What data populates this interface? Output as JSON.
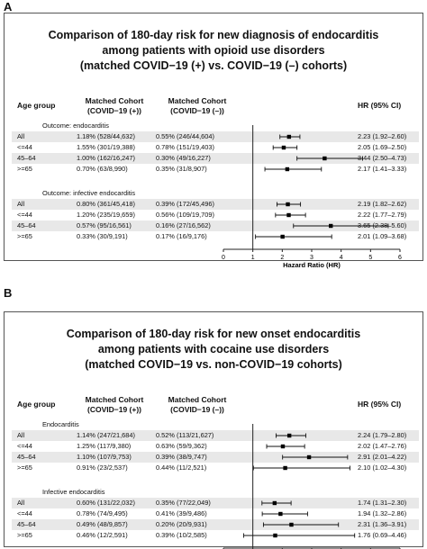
{
  "panels": [
    {
      "letter": "A",
      "title": [
        "Comparison of 180-day risk for new diagnosis of endocarditis",
        "among patients with opioid use disorders",
        "(matched COVID−19 (+) vs. COVID−19 (–) cohorts)"
      ],
      "headers": {
        "age_group": "Age group",
        "cohort1": [
          "Matched Cohort",
          "(COVID−19 (+))"
        ],
        "cohort2": [
          "Matched Cohort",
          "(COVID−19 (–))"
        ],
        "hr": "HR (95% CI)"
      },
      "sections": [
        {
          "label": "Outcome: endocarditis",
          "rows": [
            {
              "age": "All",
              "c1": "1.18% (528/44,632)",
              "c2": "0.55% (246/44,604)",
              "hr_text": "2.23 (1.92–2.60)"
            },
            {
              "age": "<=44",
              "c1": "1.55% (301/19,388)",
              "c2": "0.78% (151/19,403)",
              "hr_text": "2.05 (1.69–2.50)"
            },
            {
              "age": "45–64",
              "c1": "1.00% (162/16,247)",
              "c2": "0.30% (49/16,227)",
              "hr_text": "3.44 (2.50–4.73)"
            },
            {
              "age": ">=65",
              "c1": "0.70% (63/8,990)",
              "c2": "0.35% (31/8,907)",
              "hr_text": "2.17 (1.41–3.33)"
            }
          ]
        },
        {
          "label": "Outcome: infective endocarditis",
          "rows": [
            {
              "age": "All",
              "c1": "0.80% (361/45,418)",
              "c2": "0.39% (172/45,496)",
              "hr_text": "2.19 (1.82–2.62)"
            },
            {
              "age": "<=44",
              "c1": "1.20% (235/19,659)",
              "c2": "0.56% (109/19,709)",
              "hr_text": "2.22 (1.77–2.79)"
            },
            {
              "age": "45–64",
              "c1": "0.57% (95/16,561)",
              "c2": "0.16% (27/16,562)",
              "hr_text": "3.65 (2.38–5.60)"
            },
            {
              "age": ">=65",
              "c1": "0.33% (30/9,191)",
              "c2": "0.17% (16/9,176)",
              "hr_text": "2.01 (1.09–3.68)"
            }
          ]
        }
      ],
      "axis_label": "Hazard Ratio (HR)"
    },
    {
      "letter": "B",
      "title": [
        "Comparison of 180-day risk for new onset endocarditis",
        "among patients with cocaine use disorders",
        "(matched COVID−19 vs. non-COVID−19 cohorts)"
      ],
      "headers": {
        "age_group": "Age group",
        "cohort1": [
          "Matched Cohort",
          "(COVID−19 (+))"
        ],
        "cohort2": [
          "Matched Cohort",
          "(COVID−19 (–))"
        ],
        "hr": "HR (95% CI)"
      },
      "sections": [
        {
          "label": "Endocarditis",
          "rows": [
            {
              "age": "All",
              "c1": "1.14% (247/21,684)",
              "c2": "0.52% (113/21,627)",
              "hr_text": "2.24 (1.79–2.80)"
            },
            {
              "age": "<=44",
              "c1": "1.25% (117/9,380)",
              "c2": "0.63% (59/9,362)",
              "hr_text": "2.02 (1.47–2.76)"
            },
            {
              "age": "45–64",
              "c1": "1.10% (107/9,753)",
              "c2": "0.39% (38/9,747)",
              "hr_text": "2.91 (2.01–4.22)"
            },
            {
              "age": ">=65",
              "c1": "0.91% (23/2,537)",
              "c2": "0.44% (11/2,521)",
              "hr_text": "2.10 (1.02–4.30)"
            }
          ]
        },
        {
          "label": "Infective endocarditis",
          "rows": [
            {
              "age": "All",
              "c1": "0.60% (131/22,032)",
              "c2": "0.35% (77/22,049)",
              "hr_text": "1.74 (1.31–2.30)"
            },
            {
              "age": "<=44",
              "c1": "0.78% (74/9,495)",
              "c2": "0.41% (39/9,486)",
              "hr_text": "1.94 (1.32–2.86)"
            },
            {
              "age": "45–64",
              "c1": "0.49% (48/9,857)",
              "c2": "0.20% (20/9,931)",
              "hr_text": "2.31 (1.36–3.91)"
            },
            {
              "age": ">=65",
              "c1": "0.46% (12/2,591)",
              "c2": "0.39% (10/2,585)",
              "hr_text": "1.76 (0.69–4.46)"
            }
          ]
        }
      ],
      "axis_label": "Hazard Ratio (HR)"
    }
  ],
  "chart_data": [
    {
      "type": "forest",
      "xlabel": "Hazard Ratio (HR)",
      "xlim": [
        0,
        6
      ],
      "xticks": [
        0,
        1,
        2,
        3,
        4,
        5,
        6
      ],
      "reference_line": 1,
      "series": [
        {
          "name": "Outcome: endocarditis",
          "categories": [
            "All",
            "<=44",
            "45–64",
            ">=65"
          ],
          "hr": [
            2.23,
            2.05,
            3.44,
            2.17
          ],
          "lower": [
            1.92,
            1.69,
            2.5,
            1.41
          ],
          "upper": [
            2.6,
            2.5,
            4.73,
            3.33
          ]
        },
        {
          "name": "Outcome: infective endocarditis",
          "categories": [
            "All",
            "<=44",
            "45–64",
            ">=65"
          ],
          "hr": [
            2.19,
            2.22,
            3.65,
            2.01
          ],
          "lower": [
            1.82,
            1.77,
            2.38,
            1.09
          ],
          "upper": [
            2.62,
            2.79,
            5.6,
            3.68
          ]
        }
      ]
    },
    {
      "type": "forest",
      "xlabel": "Hazard Ratio (HR)",
      "xlim": [
        0,
        6
      ],
      "xticks": [
        0,
        1,
        2,
        3,
        4,
        5,
        6
      ],
      "reference_line": 1,
      "series": [
        {
          "name": "Endocarditis",
          "categories": [
            "All",
            "<=44",
            "45–64",
            ">=65"
          ],
          "hr": [
            2.24,
            2.02,
            2.91,
            2.1
          ],
          "lower": [
            1.79,
            1.47,
            2.01,
            1.02
          ],
          "upper": [
            2.8,
            2.76,
            4.22,
            4.3
          ]
        },
        {
          "name": "Infective endocarditis",
          "categories": [
            "All",
            "<=44",
            "45–64",
            ">=65"
          ],
          "hr": [
            1.74,
            1.94,
            2.31,
            1.76
          ],
          "lower": [
            1.31,
            1.32,
            1.36,
            0.69
          ],
          "upper": [
            2.3,
            2.86,
            3.91,
            4.46
          ]
        }
      ]
    }
  ]
}
